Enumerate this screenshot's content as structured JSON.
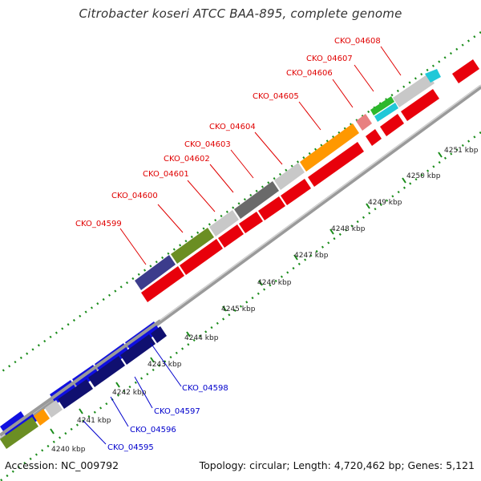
{
  "title": "Citrobacter koseri ATCC BAA-895, complete genome",
  "footer": {
    "accession": "Accession: NC_009792",
    "summary": "Topology: circular; Length: 4,720,462 bp; Genes: 5,121"
  },
  "tick_labels": [
    "4240 kbp",
    "4241 kbp",
    "4242 kbp",
    "4243 kbp",
    "4244 kbp",
    "4245 kbp",
    "4246 kbp",
    "4247 kbp",
    "4248 kbp",
    "4249 kbp",
    "4250 kbp",
    "4251 kbp"
  ],
  "gene_labels_top": [
    "CKO_04599",
    "CKO_04600",
    "CKO_04601",
    "CKO_04602",
    "CKO_04603",
    "CKO_04604",
    "CKO_04605",
    "CKO_04606",
    "CKO_04607",
    "CKO_04608"
  ],
  "gene_labels_bottom": [
    "CKO_04595",
    "CKO_04596",
    "CKO_04597",
    "CKO_04598"
  ],
  "colors": {
    "forward_gene": "#e8000b",
    "reverse_gene": "#1010e0",
    "label_forward": "#e00000",
    "label_reverse": "#0000cc",
    "backbone": "#a0a0a0",
    "tick_green": "#1a8c1a"
  }
}
